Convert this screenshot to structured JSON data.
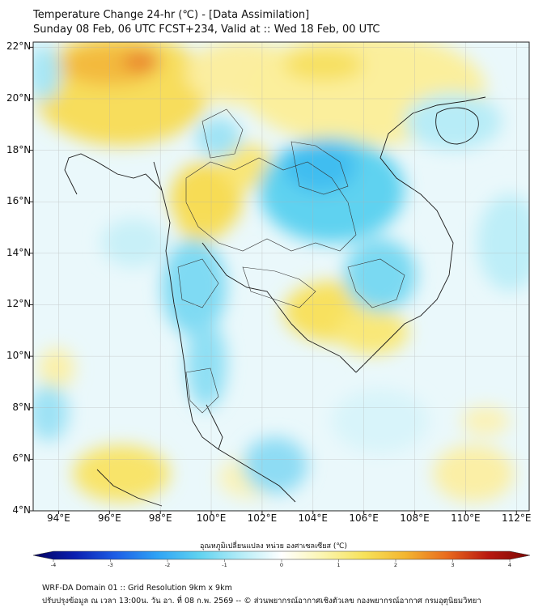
{
  "header": {
    "title": "Temperature Change 24-hr (℃) - [Data Assimilation]",
    "subtitle": "Sunday 08 Feb, 06 UTC FCST+234, Valid at :: Wed 18 Feb, 00 UTC"
  },
  "map": {
    "lat_labels": [
      "22°N",
      "20°N",
      "18°N",
      "16°N",
      "14°N",
      "12°N",
      "10°N",
      "8°N",
      "6°N",
      "4°N"
    ],
    "lon_labels": [
      "94°E",
      "96°E",
      "98°E",
      "100°E",
      "102°E",
      "104°E",
      "106°E",
      "108°E",
      "110°E",
      "112°E"
    ],
    "extent": {
      "lon_min": 93.0,
      "lon_max": 112.5,
      "lat_min": 4.0,
      "lat_max": 22.2
    },
    "grid": true
  },
  "colorbar": {
    "label": "อุณหภูมิเปลี่ยนแปลง หน่วย องศาเซลเซียส (℃)",
    "ticks": [
      "-4",
      "-3",
      "-2",
      "-1",
      "0",
      "1",
      "2",
      "3",
      "4"
    ],
    "colors": [
      "#04015e",
      "#0a1fb0",
      "#1d5fe6",
      "#2fa3f5",
      "#5fd2f0",
      "#b3ecf7",
      "#ffffff",
      "#fbf5b0",
      "#f7e25a",
      "#f3b530",
      "#e96a1e",
      "#b8170f",
      "#7a0804"
    ]
  },
  "footer": {
    "line1": "WRF-DA Domain 01 :: Grid Resolution 9km x 9km",
    "line2": "ปรับปรุงข้อมูล ณ เวลา 13:00น. วัน อา. ที่ 08 ก.พ. 2569 -- © ส่วนพยากรณ์อากาศเชิงตัวเลข กองพยากรณ์อากาศ กรมอุตุนิยมวิทยา"
  }
}
